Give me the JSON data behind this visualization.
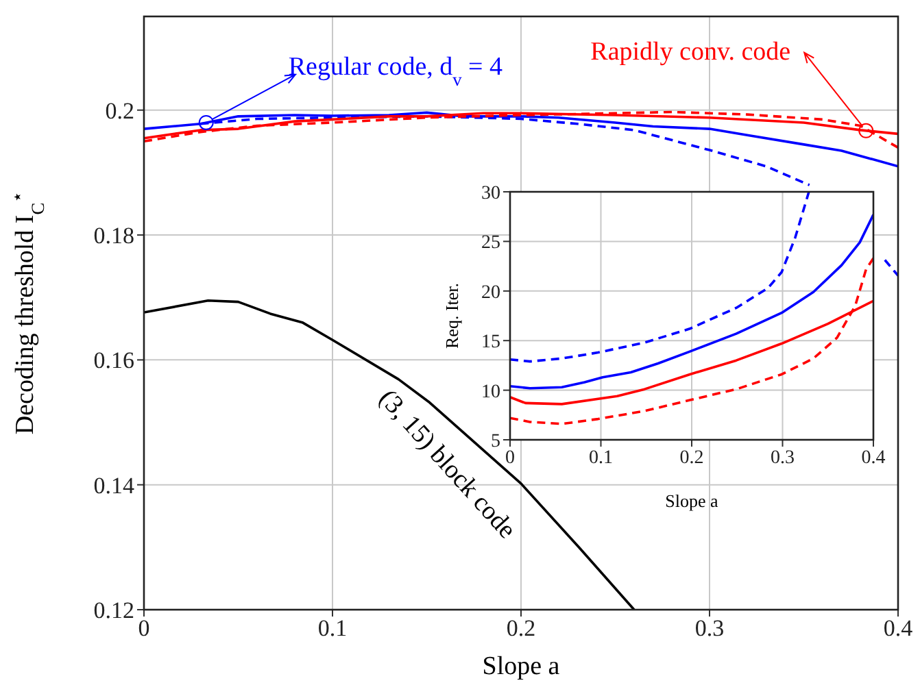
{
  "chart_data": [
    {
      "type": "line",
      "xlabel": "Slope a",
      "ylabel": "Decoding threshold I$_{C}$$^{⋆}$",
      "xlim": [
        0,
        0.4
      ],
      "ylim": [
        0.12,
        0.215
      ],
      "xticks": [
        0,
        0.1,
        0.2,
        0.3,
        0.4
      ],
      "yticks": [
        0.12,
        0.14,
        0.16,
        0.18,
        0.2
      ],
      "grid": true,
      "series": [
        {
          "color": "#0000ff",
          "x": [
            0,
            0.03,
            0.05,
            0.08,
            0.1,
            0.13,
            0.15,
            0.17,
            0.2,
            0.22,
            0.25,
            0.27,
            0.3,
            0.32,
            0.35,
            0.37,
            0.4
          ],
          "values": [
            0.197,
            0.1978,
            0.199,
            0.1992,
            0.1991,
            0.1992,
            0.1996,
            0.199,
            0.199,
            0.1988,
            0.198,
            0.1974,
            0.197,
            0.196,
            0.1945,
            0.1935,
            0.191
          ]
        },
        {
          "color": "#0000ff",
          "line_style": "dashed",
          "x": [
            0.03,
            0.06,
            0.1,
            0.15,
            0.2,
            0.23,
            0.26,
            0.3,
            0.33,
            0.353,
            0.37,
            0.393,
            0.4
          ],
          "values": [
            0.1978,
            0.1986,
            0.1988,
            0.199,
            0.1986,
            0.1978,
            0.1968,
            0.1936,
            0.191,
            0.188,
            null,
            0.176,
            0.1735
          ]
        },
        {
          "color": "#ff0000",
          "x": [
            0,
            0.03,
            0.05,
            0.08,
            0.1,
            0.13,
            0.15,
            0.18,
            0.2,
            0.25,
            0.3,
            0.35,
            0.38,
            0.4
          ],
          "values": [
            0.1955,
            0.1968,
            0.197,
            0.1982,
            0.1985,
            0.199,
            0.199,
            0.1995,
            0.1995,
            0.1992,
            0.1988,
            0.198,
            0.1968,
            0.1962
          ]
        },
        {
          "color": "#ff0000",
          "line_style": "dashed",
          "x": [
            0,
            0.03,
            0.06,
            0.1,
            0.15,
            0.2,
            0.25,
            0.28,
            0.32,
            0.36,
            0.38,
            0.4
          ],
          "values": [
            0.195,
            0.1965,
            0.1975,
            0.198,
            0.1988,
            0.1992,
            0.1995,
            0.1997,
            0.1993,
            0.1985,
            0.1975,
            0.194
          ]
        },
        {
          "color": "#000000",
          "x": [
            0,
            0.034,
            0.05,
            0.067,
            0.084,
            0.1,
            0.135,
            0.151,
            0.2,
            0.231,
            0.26
          ],
          "values": [
            0.1676,
            0.1695,
            0.1693,
            0.1674,
            0.166,
            0.1632,
            0.1569,
            0.1533,
            0.1402,
            0.1299,
            0.12
          ]
        }
      ],
      "annotations": [
        {
          "text": "Regular code, d$_{v}$ = 4",
          "x": 0.033,
          "y": 0.198
        },
        {
          "text": "Rapidly conv. code",
          "x": 0.383,
          "y": 0.1967
        },
        "(3, 15) block code"
      ]
    },
    {
      "type": "line",
      "xlabel": "Slope a",
      "ylabel": "Req. Iter.",
      "xlim": [
        0,
        0.4
      ],
      "ylim": [
        5,
        30
      ],
      "xticks": [
        0,
        0.1,
        0.2,
        0.3,
        0.4
      ],
      "yticks": [
        5,
        10,
        15,
        20,
        25,
        30
      ],
      "grid": true,
      "series": [
        {
          "color": "#0000ff",
          "line_style": "dashed",
          "x": [
            0,
            0.022,
            0.057,
            0.097,
            0.148,
            0.198,
            0.249,
            0.284,
            0.299,
            0.314,
            0.329
          ],
          "values": [
            13.1,
            12.9,
            13.2,
            13.8,
            14.8,
            16.2,
            18.3,
            20.3,
            21.9,
            25.4,
            30
          ]
        },
        {
          "color": "#0000ff",
          "x": [
            0,
            0.022,
            0.057,
            0.082,
            0.102,
            0.133,
            0.163,
            0.198,
            0.249,
            0.299,
            0.334,
            0.365,
            0.385,
            0.4
          ],
          "values": [
            10.4,
            10.2,
            10.3,
            10.8,
            11.3,
            11.8,
            12.7,
            13.9,
            15.7,
            17.8,
            19.9,
            22.6,
            24.9,
            27.7
          ]
        },
        {
          "color": "#ff0000",
          "x": [
            0,
            0.017,
            0.057,
            0.118,
            0.148,
            0.198,
            0.249,
            0.299,
            0.35,
            0.4
          ],
          "values": [
            9.3,
            8.7,
            8.6,
            9.4,
            10.1,
            11.6,
            13,
            14.7,
            16.7,
            19
          ]
        },
        {
          "color": "#ff0000",
          "line_style": "dashed",
          "x": [
            0,
            0.022,
            0.057,
            0.097,
            0.148,
            0.198,
            0.249,
            0.299,
            0.334,
            0.36,
            0.38,
            0.392,
            0.4
          ],
          "values": [
            7.2,
            6.8,
            6.6,
            7.1,
            7.9,
            9,
            10.1,
            11.6,
            13.2,
            15.3,
            18.5,
            22.2,
            23.3
          ]
        }
      ]
    }
  ]
}
